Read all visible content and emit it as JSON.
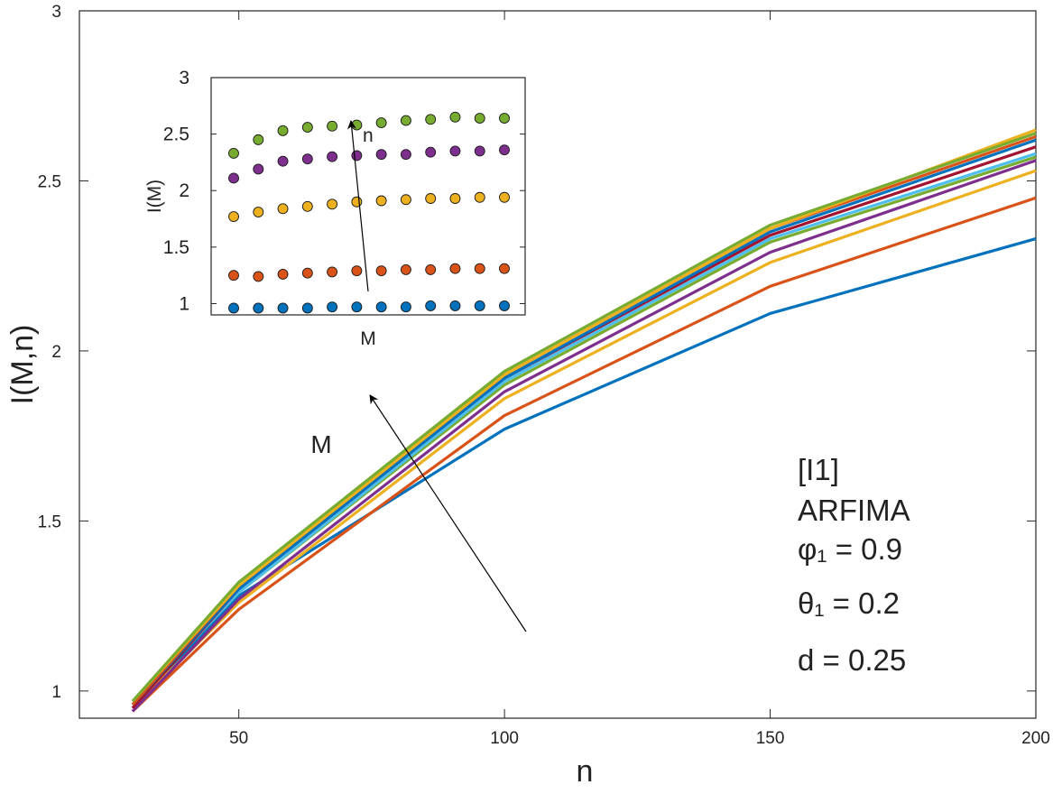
{
  "chart_data": [
    {
      "type": "line",
      "xlabel": "n",
      "ylabel": "I(M,n)",
      "x": [
        30,
        50,
        100,
        150,
        200
      ],
      "xlim": [
        20,
        200
      ],
      "ylim": [
        0.92,
        3.0
      ],
      "xticks": [
        50,
        100,
        150,
        200
      ],
      "yticks": [
        1,
        1.5,
        2,
        2.5,
        3
      ],
      "grid": false,
      "arrow_label": "M",
      "series": [
        {
          "color": "#0072BD",
          "values": [
            0.95,
            1.28,
            1.77,
            2.11,
            2.33
          ]
        },
        {
          "color": "#D95319",
          "values": [
            0.94,
            1.24,
            1.81,
            2.19,
            2.45
          ]
        },
        {
          "color": "#EDB120",
          "values": [
            0.95,
            1.26,
            1.86,
            2.26,
            2.53
          ]
        },
        {
          "color": "#7E2F8E",
          "values": [
            0.94,
            1.27,
            1.88,
            2.29,
            2.56
          ]
        },
        {
          "color": "#77AC30",
          "values": [
            0.96,
            1.29,
            1.9,
            2.32,
            2.57
          ]
        },
        {
          "color": "#4DBEEE",
          "values": [
            0.96,
            1.29,
            1.91,
            2.33,
            2.58
          ]
        },
        {
          "color": "#A2142F",
          "values": [
            0.95,
            1.3,
            1.92,
            2.34,
            2.6
          ]
        },
        {
          "color": "#0072BD",
          "values": [
            0.96,
            1.3,
            1.92,
            2.35,
            2.62
          ]
        },
        {
          "color": "#D95319",
          "values": [
            0.96,
            1.31,
            1.93,
            2.36,
            2.63
          ]
        },
        {
          "color": "#EDB120",
          "values": [
            0.97,
            1.31,
            1.93,
            2.36,
            2.65
          ]
        },
        {
          "color": "#77AC30",
          "values": [
            0.97,
            1.32,
            1.94,
            2.37,
            2.64
          ]
        }
      ],
      "annotation_lines": [
        "[I1]",
        "ARFIMA",
        "φ₁ = 0.9",
        "θ₁ = 0.2",
        "d = 0.25"
      ]
    },
    {
      "type": "scatter",
      "xlabel": "M",
      "ylabel": "I(M)",
      "ylim": [
        0.9,
        3.0
      ],
      "yticks": [
        1,
        1.5,
        2,
        2.5,
        3
      ],
      "arrow_label": "n",
      "x": [
        1,
        2,
        3,
        4,
        5,
        6,
        7,
        8,
        9,
        10,
        11,
        12
      ],
      "series": [
        {
          "color": "#0072BD",
          "values": [
            0.96,
            0.96,
            0.96,
            0.96,
            0.97,
            0.97,
            0.97,
            0.97,
            0.98,
            0.98,
            0.98,
            0.98
          ]
        },
        {
          "color": "#D95319",
          "values": [
            1.25,
            1.24,
            1.26,
            1.27,
            1.28,
            1.29,
            1.29,
            1.3,
            1.3,
            1.31,
            1.31,
            1.31
          ]
        },
        {
          "color": "#EDB120",
          "values": [
            1.77,
            1.81,
            1.84,
            1.86,
            1.88,
            1.9,
            1.91,
            1.92,
            1.93,
            1.93,
            1.94,
            1.94
          ]
        },
        {
          "color": "#7E2F8E",
          "values": [
            2.11,
            2.19,
            2.26,
            2.28,
            2.3,
            2.31,
            2.32,
            2.32,
            2.34,
            2.35,
            2.35,
            2.36
          ]
        },
        {
          "color": "#77AC30",
          "values": [
            2.33,
            2.45,
            2.53,
            2.56,
            2.57,
            2.58,
            2.6,
            2.62,
            2.63,
            2.65,
            2.64,
            2.64
          ]
        }
      ]
    }
  ]
}
